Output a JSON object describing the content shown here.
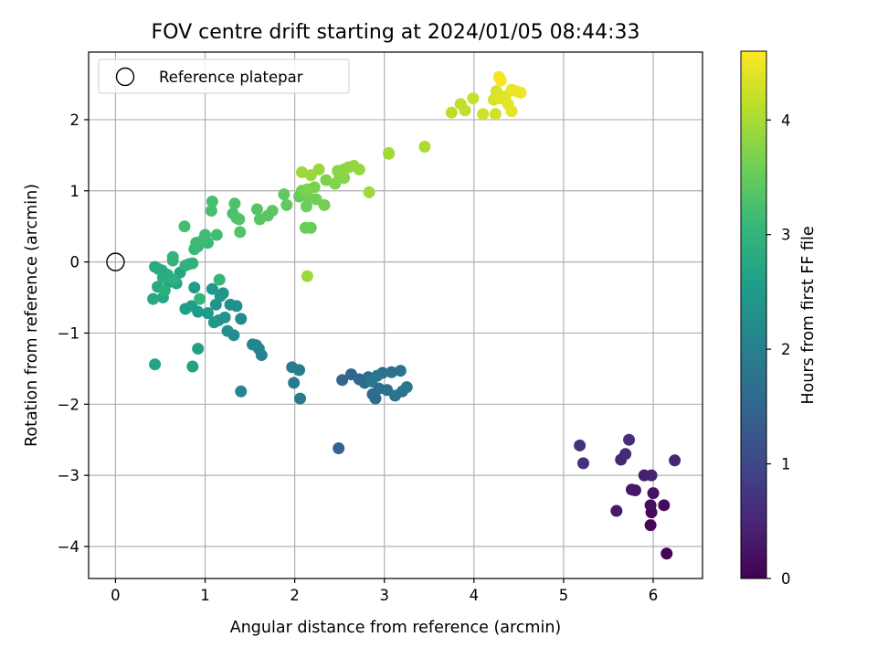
{
  "chart_data": {
    "type": "scatter",
    "title": "FOV centre drift starting at 2024/01/05 08:44:33",
    "xlabel": "Angular distance from reference (arcmin)",
    "ylabel": "Rotation from reference (arcmin)",
    "xlim": [
      -0.3,
      6.55
    ],
    "ylim": [
      -4.45,
      2.95
    ],
    "xticks": [
      0,
      1,
      2,
      3,
      4,
      5,
      6
    ],
    "yticks": [
      -4,
      -3,
      -2,
      -1,
      0,
      1,
      2
    ],
    "xtick_labels": [
      "0",
      "1",
      "2",
      "3",
      "4",
      "5",
      "6"
    ],
    "ytick_labels": [
      "−4",
      "−3",
      "−2",
      "−1",
      "0",
      "1",
      "2"
    ],
    "grid": true,
    "legend": {
      "position": "top-left",
      "entries": [
        {
          "label": "Reference platepar",
          "marker": "open-circle",
          "color": "#000000"
        }
      ]
    },
    "reference_point": {
      "x": 0,
      "y": 0
    },
    "colorbar": {
      "label": "Hours from first FF file",
      "colormap": "viridis",
      "range": [
        0,
        4.6
      ],
      "ticks": [
        0,
        1,
        2,
        3,
        4
      ],
      "tick_labels": [
        "0",
        "1",
        "2",
        "3",
        "4"
      ]
    },
    "points": [
      [
        6.15,
        -4.1,
        0.02
      ],
      [
        5.97,
        -3.7,
        0.06
      ],
      [
        5.98,
        -3.52,
        0.1
      ],
      [
        6.12,
        -3.42,
        0.14
      ],
      [
        5.97,
        -3.42,
        0.18
      ],
      [
        6.0,
        -3.25,
        0.22
      ],
      [
        5.8,
        -3.21,
        0.26
      ],
      [
        5.76,
        -3.2,
        0.3
      ],
      [
        5.59,
        -3.5,
        0.34
      ],
      [
        5.9,
        -3.0,
        0.38
      ],
      [
        5.98,
        -3.0,
        0.42
      ],
      [
        6.24,
        -2.79,
        0.46
      ],
      [
        5.64,
        -2.78,
        0.5
      ],
      [
        5.69,
        -2.7,
        0.54
      ],
      [
        5.73,
        -2.5,
        0.58
      ],
      [
        5.22,
        -2.83,
        0.62
      ],
      [
        5.18,
        -2.58,
        0.66
      ],
      [
        2.49,
        -2.62,
        1.42
      ],
      [
        2.53,
        -1.66,
        1.5
      ],
      [
        2.63,
        -1.58,
        1.52
      ],
      [
        2.72,
        -1.65,
        1.55
      ],
      [
        2.78,
        -1.7,
        1.58
      ],
      [
        2.82,
        -1.62,
        1.6
      ],
      [
        2.87,
        -1.86,
        1.62
      ],
      [
        2.9,
        -1.92,
        1.64
      ],
      [
        2.94,
        -1.78,
        1.66
      ],
      [
        2.98,
        -1.56,
        1.68
      ],
      [
        3.03,
        -1.8,
        1.7
      ],
      [
        3.08,
        -1.55,
        1.72
      ],
      [
        3.12,
        -1.88,
        1.74
      ],
      [
        3.18,
        -1.53,
        1.76
      ],
      [
        3.2,
        -1.82,
        1.78
      ],
      [
        3.25,
        -1.76,
        1.8
      ],
      [
        2.92,
        -1.6,
        1.82
      ],
      [
        2.86,
        -1.68,
        1.84
      ],
      [
        2.06,
        -1.92,
        1.88
      ],
      [
        2.05,
        -1.52,
        1.9
      ],
      [
        1.99,
        -1.7,
        1.92
      ],
      [
        1.97,
        -1.48,
        1.95
      ],
      [
        1.63,
        -1.31,
        2.05
      ],
      [
        1.6,
        -1.22,
        2.08
      ],
      [
        1.57,
        -1.17,
        2.1
      ],
      [
        1.53,
        -1.16,
        2.12
      ],
      [
        1.4,
        -1.82,
        2.14
      ],
      [
        1.4,
        -0.8,
        2.2
      ],
      [
        1.32,
        -1.03,
        2.25
      ],
      [
        1.25,
        -0.97,
        2.28
      ],
      [
        1.35,
        -0.62,
        2.3
      ],
      [
        1.28,
        -0.6,
        2.32
      ],
      [
        1.22,
        -0.78,
        2.35
      ],
      [
        1.15,
        -0.82,
        2.37
      ],
      [
        1.12,
        -0.6,
        2.39
      ],
      [
        1.17,
        -0.48,
        2.41
      ],
      [
        1.2,
        -0.44,
        2.43
      ],
      [
        1.08,
        -0.38,
        2.45
      ],
      [
        1.1,
        -0.85,
        2.47
      ],
      [
        1.03,
        -0.72,
        2.5
      ],
      [
        0.92,
        -0.7,
        2.52
      ],
      [
        0.88,
        -0.36,
        2.54
      ],
      [
        0.85,
        -0.62,
        2.56
      ],
      [
        0.78,
        -0.66,
        2.58
      ],
      [
        0.92,
        -1.22,
        2.6
      ],
      [
        0.86,
        -1.47,
        2.62
      ],
      [
        0.44,
        -1.44,
        2.64
      ],
      [
        0.6,
        -0.28,
        2.66
      ],
      [
        0.68,
        -0.3,
        2.68
      ],
      [
        0.72,
        -0.15,
        2.7
      ],
      [
        0.53,
        -0.5,
        2.72
      ],
      [
        0.42,
        -0.52,
        2.74
      ],
      [
        0.47,
        -0.35,
        2.76
      ],
      [
        0.44,
        -0.07,
        2.78
      ],
      [
        0.48,
        -0.1,
        2.8
      ],
      [
        0.52,
        -0.12,
        2.82
      ],
      [
        0.58,
        -0.18,
        2.84
      ],
      [
        0.53,
        -0.22,
        2.86
      ],
      [
        0.55,
        -0.4,
        2.88
      ],
      [
        0.65,
        -0.25,
        2.9
      ],
      [
        0.78,
        -0.05,
        2.92
      ],
      [
        0.82,
        -0.03,
        2.94
      ],
      [
        0.86,
        -0.02,
        2.96
      ],
      [
        0.64,
        0.02,
        2.98
      ],
      [
        0.64,
        0.07,
        3.0
      ],
      [
        0.94,
        -0.52,
        3.02
      ],
      [
        1.16,
        -0.25,
        3.04
      ],
      [
        1.03,
        0.27,
        3.06
      ],
      [
        0.92,
        0.22,
        3.08
      ],
      [
        0.88,
        0.18,
        3.1
      ],
      [
        0.9,
        0.27,
        3.12
      ],
      [
        0.97,
        0.3,
        3.14
      ],
      [
        1.0,
        0.38,
        3.16
      ],
      [
        1.13,
        0.38,
        3.18
      ],
      [
        0.77,
        0.5,
        3.2
      ],
      [
        1.07,
        0.72,
        3.22
      ],
      [
        1.08,
        0.85,
        3.24
      ],
      [
        1.31,
        0.68,
        3.26
      ],
      [
        1.33,
        0.82,
        3.28
      ],
      [
        1.35,
        0.62,
        3.3
      ],
      [
        1.38,
        0.6,
        3.32
      ],
      [
        1.39,
        0.42,
        3.34
      ],
      [
        1.58,
        0.74,
        3.36
      ],
      [
        1.61,
        0.6,
        3.38
      ],
      [
        1.7,
        0.65,
        3.4
      ],
      [
        1.75,
        0.72,
        3.42
      ],
      [
        1.88,
        0.95,
        3.44
      ],
      [
        1.91,
        0.8,
        3.46
      ],
      [
        2.05,
        0.92,
        3.48
      ],
      [
        2.08,
        1.0,
        3.5
      ],
      [
        2.18,
        0.48,
        3.52
      ],
      [
        2.12,
        0.48,
        3.54
      ],
      [
        2.13,
        0.78,
        3.56
      ],
      [
        2.16,
        0.9,
        3.58
      ],
      [
        2.24,
        0.88,
        3.6
      ],
      [
        2.33,
        0.8,
        3.62
      ],
      [
        2.1,
        1.0,
        3.64
      ],
      [
        2.22,
        1.05,
        3.66
      ],
      [
        2.14,
        1.02,
        3.68
      ],
      [
        2.35,
        1.15,
        3.7
      ],
      [
        2.45,
        1.1,
        3.72
      ],
      [
        2.5,
        1.22,
        3.74
      ],
      [
        2.55,
        1.18,
        3.76
      ],
      [
        2.48,
        1.28,
        3.78
      ],
      [
        2.55,
        1.3,
        3.8
      ],
      [
        2.6,
        1.33,
        3.82
      ],
      [
        2.66,
        1.35,
        3.84
      ],
      [
        2.72,
        1.3,
        3.86
      ],
      [
        2.27,
        1.3,
        3.88
      ],
      [
        2.18,
        1.22,
        3.9
      ],
      [
        2.08,
        1.26,
        3.91
      ],
      [
        2.83,
        0.98,
        3.92
      ],
      [
        2.14,
        -0.2,
        3.93
      ],
      [
        3.05,
        1.53,
        3.95
      ],
      [
        3.05,
        1.52,
        3.96
      ],
      [
        3.45,
        1.62,
        4.02
      ],
      [
        3.75,
        2.1,
        4.12
      ],
      [
        3.85,
        2.22,
        4.16
      ],
      [
        3.9,
        2.13,
        4.18
      ],
      [
        3.99,
        2.3,
        4.22
      ],
      [
        4.1,
        2.08,
        4.25
      ],
      [
        4.24,
        2.08,
        4.28
      ],
      [
        4.22,
        2.28,
        4.31
      ],
      [
        4.25,
        2.4,
        4.34
      ],
      [
        4.3,
        2.3,
        4.37
      ],
      [
        4.35,
        2.33,
        4.4
      ],
      [
        4.38,
        2.22,
        4.42
      ],
      [
        4.42,
        2.12,
        4.44
      ],
      [
        4.42,
        2.42,
        4.46
      ],
      [
        4.47,
        2.4,
        4.48
      ],
      [
        4.52,
        2.38,
        4.5
      ],
      [
        4.28,
        2.6,
        4.53
      ],
      [
        4.3,
        2.55,
        4.56
      ]
    ]
  }
}
